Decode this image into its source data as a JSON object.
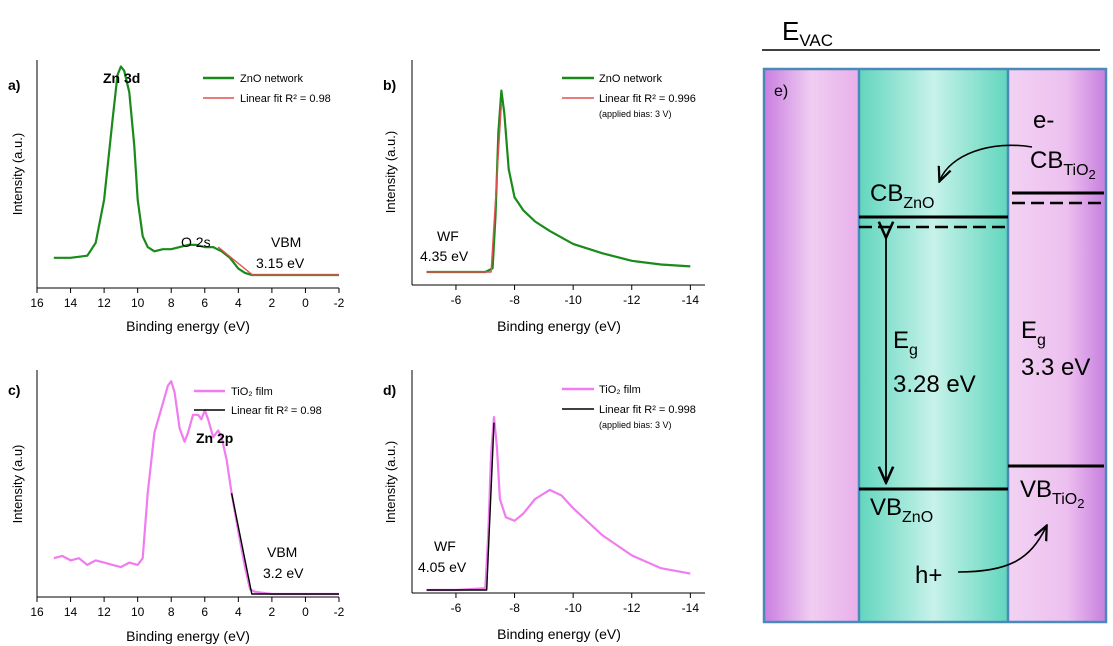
{
  "chart_data": [
    {
      "panel": "a)",
      "type": "line",
      "xlabel": "Binding energy (eV)",
      "ylabel": "Intensity (a.u.)",
      "xlim": [
        16,
        -2
      ],
      "xticks": [
        "16",
        "14",
        "12",
        "10",
        "8",
        "6",
        "4",
        "2",
        "0",
        "-2"
      ],
      "series": [
        {
          "name": "ZnO network",
          "color": "#1a8a1a",
          "x": [
            15,
            14,
            13,
            12.5,
            12,
            11.5,
            11.2,
            11,
            10.8,
            10.5,
            10.2,
            10,
            9.7,
            9.4,
            9,
            8.5,
            8,
            7.5,
            7,
            6.5,
            6,
            5.5,
            5,
            4.5,
            4.2,
            4,
            3.6,
            3.2,
            2.5,
            1.5,
            0,
            -1,
            -2
          ],
          "y": [
            0.08,
            0.08,
            0.09,
            0.15,
            0.35,
            0.72,
            0.93,
            0.97,
            0.95,
            0.85,
            0.6,
            0.35,
            0.18,
            0.13,
            0.11,
            0.12,
            0.12,
            0.13,
            0.14,
            0.14,
            0.13,
            0.13,
            0.11,
            0.08,
            0.05,
            0.03,
            0.01,
            0.0,
            0.0,
            0.0,
            0.0,
            0.0,
            0.0
          ]
        },
        {
          "name": "Linear fit R² = 0.98",
          "color": "#e05050",
          "x": [
            5.2,
            3.15,
            -2
          ],
          "y": [
            0.13,
            0.0,
            0.0
          ]
        }
      ],
      "annotations": [
        "Zn 3d",
        "O 2s",
        "VBM",
        "3.15 eV"
      ]
    },
    {
      "panel": "b)",
      "type": "line",
      "xlabel": "Binding energy (eV)",
      "ylabel": "Intensity (a.u.)",
      "xlim": [
        -4.5,
        -14.5
      ],
      "xticks": [
        "-6",
        "-8",
        "-10",
        "-12",
        "-14"
      ],
      "series": [
        {
          "name": "ZnO network",
          "color": "#1a8a1a",
          "x": [
            -5,
            -6,
            -7,
            -7.25,
            -7.35,
            -7.45,
            -7.55,
            -7.65,
            -7.8,
            -8,
            -8.3,
            -8.7,
            -9.2,
            -10,
            -11,
            -12,
            -13,
            -14
          ],
          "y": [
            0.0,
            0.0,
            0.0,
            0.02,
            0.3,
            0.75,
            0.97,
            0.85,
            0.55,
            0.4,
            0.33,
            0.27,
            0.22,
            0.15,
            0.1,
            0.06,
            0.04,
            0.03
          ]
        },
        {
          "name": "Linear fit R² = 0.996",
          "color": "#e05050",
          "x": [
            -5,
            -7.2,
            -7.55
          ],
          "y": [
            0.0,
            0.0,
            0.9
          ]
        }
      ],
      "note": "(applied bias: 3 V)",
      "annotations": [
        "WF",
        "4.35 eV"
      ]
    },
    {
      "panel": "c)",
      "type": "line",
      "xlabel": "Binding energy (eV)",
      "ylabel": "Intensity (a.u)",
      "xlim": [
        16,
        -2
      ],
      "xticks": [
        "16",
        "14",
        "12",
        "10",
        "8",
        "6",
        "4",
        "2",
        "0",
        "-2"
      ],
      "series": [
        {
          "name": "TiO₂ film",
          "color": "#f07cf0",
          "x": [
            15,
            14.5,
            14,
            13.5,
            13,
            12.5,
            12,
            11.5,
            11,
            10.5,
            10,
            9.7,
            9.4,
            9,
            8.5,
            8.2,
            8,
            7.8,
            7.5,
            7.2,
            7,
            6.7,
            6.4,
            6.2,
            6,
            5.8,
            5.5,
            5.2,
            5,
            4.7,
            4.4,
            4,
            3.6,
            3.3,
            3,
            2,
            1,
            0,
            -1,
            -2
          ],
          "y": [
            0.16,
            0.17,
            0.15,
            0.16,
            0.13,
            0.15,
            0.14,
            0.13,
            0.12,
            0.14,
            0.13,
            0.16,
            0.45,
            0.72,
            0.85,
            0.93,
            0.95,
            0.9,
            0.74,
            0.68,
            0.72,
            0.8,
            0.8,
            0.78,
            0.82,
            0.78,
            0.7,
            0.73,
            0.7,
            0.6,
            0.45,
            0.28,
            0.12,
            0.02,
            0.01,
            0.0,
            0.0,
            0.0,
            0.0,
            0.0
          ]
        },
        {
          "name": "Linear fit R² = 0.98",
          "color": "#000000",
          "x": [
            4.4,
            3.2,
            -2
          ],
          "y": [
            0.45,
            0.0,
            0.0
          ]
        }
      ],
      "annotations": [
        "Zn 2p",
        "VBM",
        "3.2 eV"
      ]
    },
    {
      "panel": "d)",
      "type": "line",
      "xlabel": "Binding energy (eV)",
      "ylabel": "Intensity (a.u.)",
      "xlim": [
        -4.5,
        -14.5
      ],
      "xticks": [
        "-6",
        "-8",
        "-10",
        "-12",
        "-14"
      ],
      "series": [
        {
          "name": "TiO₂ film",
          "color": "#f07cf0",
          "x": [
            -5,
            -6,
            -7,
            -7.1,
            -7.2,
            -7.3,
            -7.4,
            -7.5,
            -7.7,
            -8,
            -8.3,
            -8.7,
            -9.2,
            -9.6,
            -10,
            -11,
            -12,
            -13,
            -14
          ],
          "y": [
            0.0,
            0.0,
            0.01,
            0.3,
            0.75,
            0.95,
            0.78,
            0.5,
            0.4,
            0.38,
            0.42,
            0.5,
            0.55,
            0.52,
            0.45,
            0.3,
            0.19,
            0.12,
            0.09
          ]
        },
        {
          "name": "Linear fit R² = 0.998",
          "color": "#000000",
          "x": [
            -5,
            -7.05,
            -7.3
          ],
          "y": [
            0.0,
            0.0,
            0.92
          ]
        }
      ],
      "note": "(applied bias: 3 V)",
      "annotations": [
        "WF",
        "4.05 eV"
      ]
    }
  ],
  "diagram": {
    "vacuum_label_main": "E",
    "vacuum_label_sub": "VAC",
    "panel_label": "e)",
    "electron": "e-",
    "hole": "h+",
    "cb_tio2_main": "CB",
    "cb_tio2_sub": "TiO",
    "cb_tio2_subsub": "2",
    "cb_zno_main": "CB",
    "cb_zno_sub": "ZnO",
    "vb_zno_main": "VB",
    "vb_zno_sub": "ZnO",
    "vb_tio2_main": "VB",
    "vb_tio2_sub": "TiO",
    "vb_tio2_subsub": "2",
    "eg_zno_main": "E",
    "eg_zno_sub": "g",
    "eg_zno_value": "3.28 eV",
    "eg_tio2_main": "E",
    "eg_tio2_sub": "g",
    "eg_tio2_value": "3.3 eV",
    "colors": {
      "zno": "#8fe3d3",
      "tio2": "#e6a8e8",
      "frame": "#4a8ab8"
    }
  }
}
